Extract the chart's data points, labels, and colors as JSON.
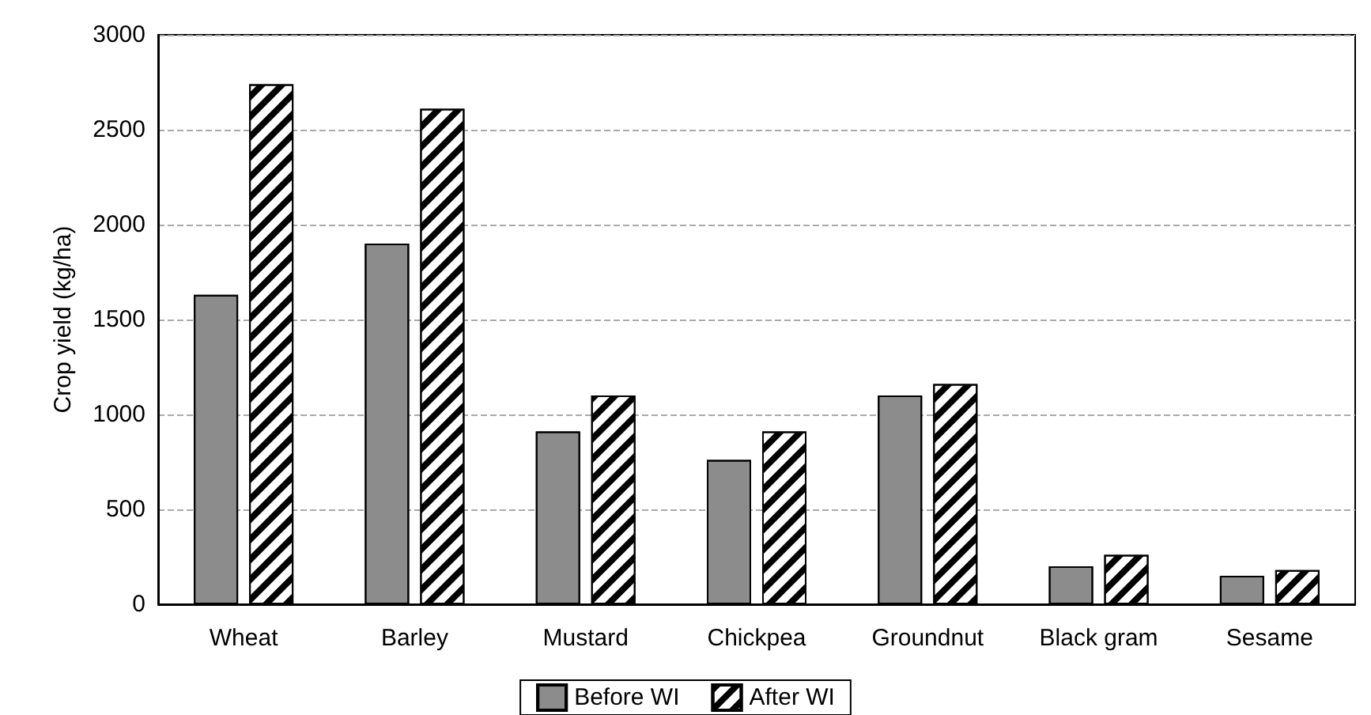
{
  "chart_data": {
    "type": "bar",
    "ylabel": "Crop yield (kg/ha)",
    "categories": [
      "Wheat",
      "Barley",
      "Mustard",
      "Chickpea",
      "Groundnut",
      "Black gram",
      "Sesame"
    ],
    "series": [
      {
        "name": "Before WI",
        "color": "#8c8c8c",
        "values": [
          1630,
          1900,
          910,
          760,
          1100,
          200,
          150
        ]
      },
      {
        "name": "After WI",
        "color": "#000000",
        "values": [
          2740,
          2610,
          1100,
          910,
          1160,
          260,
          180
        ]
      }
    ],
    "ylim": [
      0,
      3000
    ],
    "yticks": [
      0,
      500,
      1000,
      1500,
      2000,
      2500,
      3000
    ],
    "grid": "y",
    "legend": "bottom"
  }
}
